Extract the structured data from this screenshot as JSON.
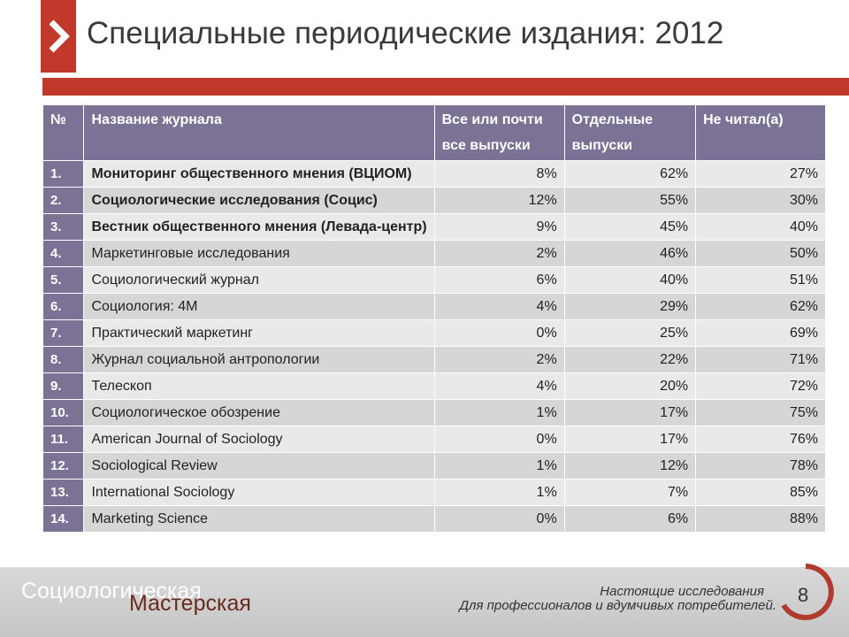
{
  "slide": {
    "title": "Специальные периодические издания: 2012",
    "page_number": "8"
  },
  "table": {
    "headers": {
      "num": "№",
      "name": "Название журнала",
      "all_issues": "Все или почти все выпуски",
      "some_issues": "Отдельные выпуски",
      "not_read": "Не читал(а)"
    },
    "rows": [
      {
        "num": "1.",
        "name": "Мониторинг общественного мнения (ВЦИОМ)",
        "all": "8%",
        "some": "62%",
        "none": "27%",
        "bold": true
      },
      {
        "num": "2.",
        "name": "Социологические исследования (Социс)",
        "all": "12%",
        "some": "55%",
        "none": "30%",
        "bold": true
      },
      {
        "num": "3.",
        "name": "Вестник общественного мнения (Левада-центр)",
        "all": "9%",
        "some": "45%",
        "none": "40%",
        "bold": true
      },
      {
        "num": "4.",
        "name": "Маркетинговые исследования",
        "all": "2%",
        "some": "46%",
        "none": "50%",
        "bold": false
      },
      {
        "num": "5.",
        "name": "Социологический журнал",
        "all": "6%",
        "some": "40%",
        "none": "51%",
        "bold": false
      },
      {
        "num": "6.",
        "name": "Социология: 4М",
        "all": "4%",
        "some": "29%",
        "none": "62%",
        "bold": false
      },
      {
        "num": "7.",
        "name": "Практический маркетинг",
        "all": "0%",
        "some": "25%",
        "none": "69%",
        "bold": false
      },
      {
        "num": "8.",
        "name": "Журнал социальной антропологии",
        "all": "2%",
        "some": "22%",
        "none": "71%",
        "bold": false
      },
      {
        "num": "9.",
        "name": "Телескоп",
        "all": "4%",
        "some": "20%",
        "none": "72%",
        "bold": false
      },
      {
        "num": "10.",
        "name": "Социологическое обозрение",
        "all": "1%",
        "some": "17%",
        "none": "75%",
        "bold": false
      },
      {
        "num": "11.",
        "name": "American Journal of Sociology",
        "all": "0%",
        "some": "17%",
        "none": "76%",
        "bold": false
      },
      {
        "num": "12.",
        "name": "Sociological Review",
        "all": "1%",
        "some": "12%",
        "none": "78%",
        "bold": false
      },
      {
        "num": "13.",
        "name": "International Sociology",
        "all": "1%",
        "some": "7%",
        "none": "85%",
        "bold": false
      },
      {
        "num": "14.",
        "name": "Marketing Science",
        "all": "0%",
        "some": "6%",
        "none": "88%",
        "bold": false
      }
    ]
  },
  "footer": {
    "brand_line1": "Социологическая",
    "brand_line2": "Мастерская",
    "tagline1": "Настоящие исследования",
    "tagline2": "Для профессионалов и вдумчивых потребителей."
  },
  "colors": {
    "accent_red": "#c0392b",
    "header_purple": "#7b7296"
  },
  "icons": {
    "title_marker": "chevron-right-icon"
  }
}
